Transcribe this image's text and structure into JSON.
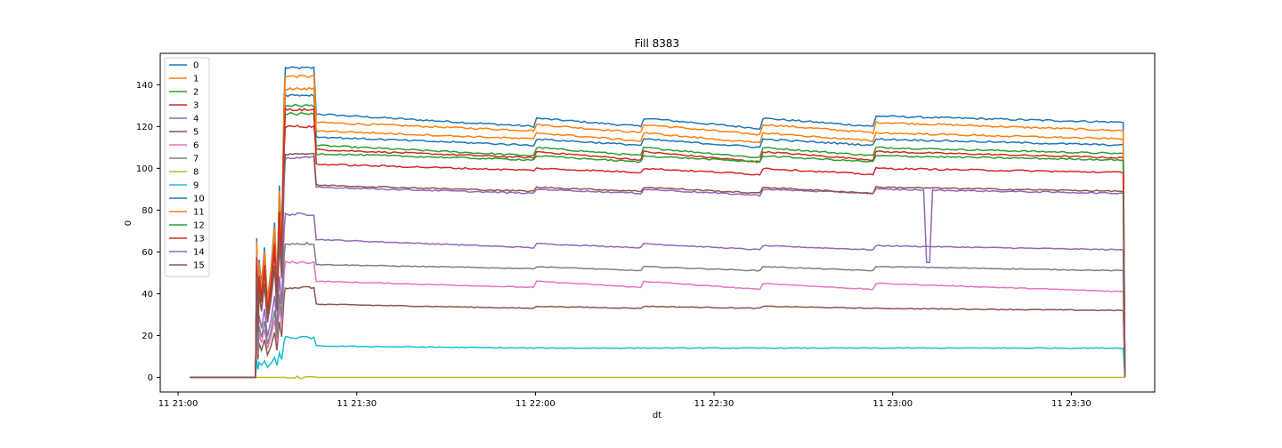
{
  "chart_data": {
    "type": "line",
    "title": "Fill 8383",
    "xlabel": "dt",
    "ylabel": "0",
    "x_ticks": [
      "11 21:00",
      "11 21:30",
      "11 22:00",
      "11 22:30",
      "11 23:00",
      "11 23:30"
    ],
    "x_tick_minutes": [
      0,
      30,
      60,
      90,
      120,
      150
    ],
    "xlim_minutes": [
      -3,
      164
    ],
    "ylim": [
      -7,
      155
    ],
    "y_ticks": [
      0,
      20,
      40,
      60,
      80,
      100,
      120,
      140
    ],
    "grid": false,
    "legend_position": "upper left",
    "x_unit_note": "minutes after 11 21:00",
    "segments": [
      {
        "name": "startup_zero",
        "x": [
          2,
          13
        ]
      },
      {
        "name": "ramp_spikes",
        "x": [
          13,
          18
        ]
      },
      {
        "name": "high_block",
        "x": [
          18,
          23
        ]
      },
      {
        "name": "block_A",
        "x": [
          23,
          60
        ]
      },
      {
        "name": "block_B",
        "x": [
          60,
          78
        ]
      },
      {
        "name": "block_C",
        "x": [
          78,
          98
        ]
      },
      {
        "name": "block_D",
        "x": [
          98,
          117
        ]
      },
      {
        "name": "block_E",
        "x": [
          117,
          159
        ]
      }
    ],
    "series": [
      {
        "name": "0",
        "color": "#1f77b4",
        "levels": {
          "high": 148,
          "A": [
            126,
            120
          ],
          "B": [
            124,
            120
          ],
          "C": [
            124,
            119
          ],
          "D": [
            124,
            120
          ],
          "E": [
            125,
            122
          ]
        }
      },
      {
        "name": "1",
        "color": "#ff7f0e",
        "levels": {
          "high": 144,
          "A": [
            122,
            118
          ],
          "B": [
            121,
            117
          ],
          "C": [
            121,
            116
          ],
          "D": [
            121,
            117
          ],
          "E": [
            122,
            118
          ]
        }
      },
      {
        "name": "2",
        "color": "#2ca02c",
        "levels": {
          "high": 130,
          "A": [
            111,
            106
          ],
          "B": [
            110,
            106
          ],
          "C": [
            110,
            105
          ],
          "D": [
            110,
            106
          ],
          "E": [
            110,
            107
          ]
        }
      },
      {
        "name": "3",
        "color": "#d62728",
        "levels": {
          "high": 120,
          "A": [
            109,
            105
          ],
          "B": [
            108,
            104
          ],
          "C": [
            108,
            103
          ],
          "D": [
            108,
            104
          ],
          "E": [
            108,
            105
          ]
        }
      },
      {
        "name": "4",
        "color": "#9467bd",
        "levels": {
          "high": 78,
          "A": [
            66,
            62
          ],
          "B": [
            64,
            62
          ],
          "C": [
            64,
            61
          ],
          "D": [
            63,
            61
          ],
          "E": [
            63,
            61
          ]
        }
      },
      {
        "name": "5",
        "color": "#8c564b",
        "levels": {
          "high": 43,
          "A": [
            35,
            33
          ],
          "B": [
            34,
            33
          ],
          "C": [
            34,
            33
          ],
          "D": [
            34,
            33
          ],
          "E": [
            33,
            32
          ]
        }
      },
      {
        "name": "6",
        "color": "#e377c2",
        "levels": {
          "high": 55,
          "A": [
            46,
            43
          ],
          "B": [
            46,
            43
          ],
          "C": [
            46,
            42
          ],
          "D": [
            45,
            42
          ],
          "E": [
            45,
            41
          ]
        }
      },
      {
        "name": "7",
        "color": "#7f7f7f",
        "levels": {
          "high": 64,
          "A": [
            54,
            52
          ],
          "B": [
            53,
            51
          ],
          "C": [
            53,
            51
          ],
          "D": [
            53,
            51
          ],
          "E": [
            53,
            51
          ]
        }
      },
      {
        "name": "8",
        "color": "#bcbd22",
        "levels": {
          "high": 0,
          "A": [
            0,
            0
          ],
          "B": [
            0,
            0
          ],
          "C": [
            0,
            0
          ],
          "D": [
            0,
            0
          ],
          "E": [
            0,
            0
          ]
        }
      },
      {
        "name": "9",
        "color": "#17becf",
        "levels": {
          "high": 19,
          "A": [
            15,
            14
          ],
          "B": [
            14,
            14
          ],
          "C": [
            14,
            14
          ],
          "D": [
            14,
            14
          ],
          "E": [
            14,
            14
          ]
        }
      },
      {
        "name": "10",
        "color": "#1f77b4",
        "levels": {
          "high": 135,
          "A": [
            115,
            111
          ],
          "B": [
            114,
            111
          ],
          "C": [
            114,
            110
          ],
          "D": [
            114,
            111
          ],
          "E": [
            114,
            111
          ]
        }
      },
      {
        "name": "11",
        "color": "#ff7f0e",
        "levels": {
          "high": 138,
          "A": [
            118,
            114
          ],
          "B": [
            117,
            113
          ],
          "C": [
            117,
            112
          ],
          "D": [
            117,
            113
          ],
          "E": [
            117,
            114
          ]
        }
      },
      {
        "name": "12",
        "color": "#2ca02c",
        "levels": {
          "high": 126,
          "A": [
            107,
            104
          ],
          "B": [
            106,
            103
          ],
          "C": [
            106,
            103
          ],
          "D": [
            106,
            103
          ],
          "E": [
            106,
            104
          ]
        }
      },
      {
        "name": "13",
        "color": "#d62728",
        "levels": {
          "high": 128,
          "A": [
            102,
            99
          ],
          "B": [
            100,
            98
          ],
          "C": [
            100,
            97
          ],
          "D": [
            100,
            97
          ],
          "E": [
            100,
            98
          ]
        }
      },
      {
        "name": "14",
        "color": "#9467bd",
        "levels": {
          "high": 105,
          "A": [
            91,
            88
          ],
          "B": [
            90,
            88
          ],
          "C": [
            90,
            87
          ],
          "D": [
            90,
            88
          ],
          "E": [
            90,
            88
          ]
        }
      },
      {
        "name": "15",
        "color": "#8c564b",
        "levels": {
          "high": 107,
          "A": [
            92,
            89
          ],
          "B": [
            91,
            89
          ],
          "C": [
            91,
            88
          ],
          "D": [
            91,
            88
          ],
          "E": [
            91,
            89
          ]
        }
      }
    ],
    "annotations": [
      {
        "series": "14",
        "x": 126,
        "type": "dip",
        "y": 55
      }
    ]
  }
}
